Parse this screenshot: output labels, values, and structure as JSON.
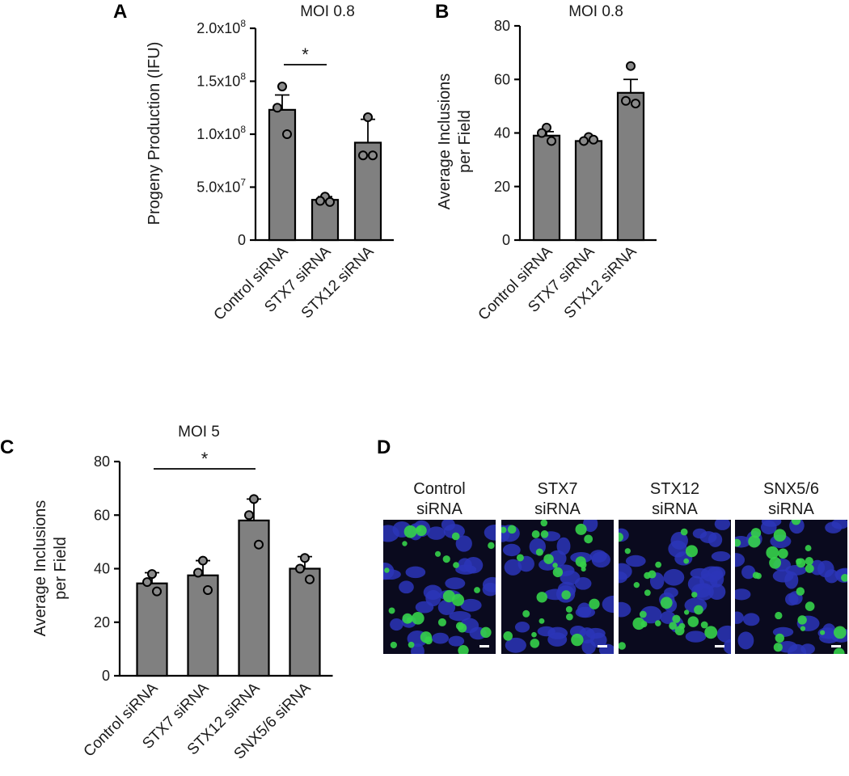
{
  "figure": {
    "panels": [
      "A",
      "B",
      "C",
      "D"
    ]
  },
  "chart_data": [
    {
      "panel": "A",
      "type": "bar",
      "title": "MOI 0.8",
      "ylabel": "Progeny Production (IFU)",
      "xlabel": "",
      "ylim": [
        0,
        200000000
      ],
      "yticks": [
        0,
        50000000,
        100000000,
        150000000,
        200000000
      ],
      "ytick_labels": [
        {
          "base": "0",
          "exp": ""
        },
        {
          "base": "5.0x10",
          "exp": "7"
        },
        {
          "base": "1.0x10",
          "exp": "8"
        },
        {
          "base": "1.5x10",
          "exp": "8"
        },
        {
          "base": "2.0x10",
          "exp": "8"
        }
      ],
      "categories": [
        "Control siRNA",
        "STX7 siRNA",
        "STX12 siRNA"
      ],
      "values": [
        123000000,
        38000000,
        92000000
      ],
      "errors": [
        14000000,
        3000000,
        22000000
      ],
      "points": [
        [
          145000000,
          125000000,
          100000000
        ],
        [
          41000000,
          37000000,
          36000000
        ],
        [
          116000000,
          80000000,
          80000000
        ]
      ],
      "significance": [
        {
          "from": 0,
          "to": 1,
          "label": "*"
        }
      ]
    },
    {
      "panel": "B",
      "type": "bar",
      "title": "MOI 0.8",
      "ylabel": "Average Inclusions per Field",
      "ylabel_lines": [
        "Average Inclusions",
        "per Field"
      ],
      "xlabel": "",
      "ylim": [
        0,
        80
      ],
      "yticks": [
        0,
        20,
        40,
        60,
        80
      ],
      "categories": [
        "Control siRNA",
        "STX7 siRNA",
        "STX12 siRNA"
      ],
      "values": [
        39,
        37,
        55
      ],
      "errors": [
        1.5,
        1,
        5
      ],
      "points": [
        [
          42,
          40,
          37
        ],
        [
          38.5,
          37,
          37.5
        ],
        [
          65,
          52,
          51
        ]
      ],
      "significance": []
    },
    {
      "panel": "C",
      "type": "bar",
      "title": "MOI 5",
      "ylabel": "Average Inclusions per Field",
      "ylabel_lines": [
        "Average Inclusions",
        "per Field"
      ],
      "xlabel": "",
      "ylim": [
        0,
        80
      ],
      "yticks": [
        0,
        20,
        40,
        60,
        80
      ],
      "categories": [
        "Control siRNA",
        "STX7 siRNA",
        "STX12 siRNA",
        "SNX5/6 siRNA"
      ],
      "values": [
        34.5,
        37.5,
        58,
        40
      ],
      "errors": [
        4,
        5.5,
        8,
        4.5
      ],
      "points": [
        [
          38,
          35,
          31.5
        ],
        [
          43,
          38.5,
          32
        ],
        [
          66,
          60,
          49
        ],
        [
          44,
          40,
          36
        ]
      ],
      "significance": [
        {
          "from": 0,
          "to": 2,
          "label": "*"
        }
      ]
    }
  ],
  "micrographs": {
    "panel": "D",
    "colors": {
      "background": "#0a0a1e",
      "nucleus": "#2b35b8",
      "inclusion": "#35d14a",
      "scale_bar": "#ffffff"
    },
    "items": [
      {
        "label_lines": [
          "Control",
          "siRNA"
        ],
        "seed": 11
      },
      {
        "label_lines": [
          "STX7",
          "siRNA"
        ],
        "seed": 23
      },
      {
        "label_lines": [
          "STX12",
          "siRNA"
        ],
        "seed": 37
      },
      {
        "label_lines": [
          "SNX5/6",
          "siRNA"
        ],
        "seed": 53
      }
    ]
  }
}
